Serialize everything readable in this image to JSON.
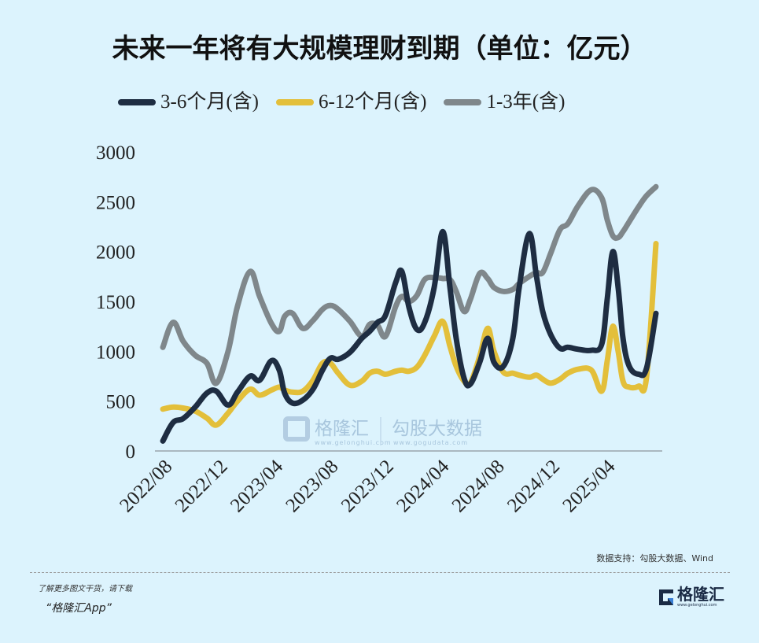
{
  "title": "未来一年将有大规模理财到期（单位：亿元）",
  "watermark": {
    "brand": "格隆汇",
    "brand_url": "www.gelonghui.com",
    "data_brand": "勾股大数据",
    "data_url": "www.gogudata.com"
  },
  "footer": {
    "source": "数据支持：勾股大数据、Wind",
    "promo_line1": "了解更多图文干货，请下载",
    "promo_line2": "“格隆汇App”",
    "logo_text": "格隆汇",
    "logo_url": "www.gelonghui.com"
  },
  "chart_data": {
    "type": "line",
    "title": "未来一年将有大规模理财到期（单位：亿元）",
    "xlabel": "",
    "ylabel": "",
    "ylim": [
      0,
      3000
    ],
    "yticks": [
      0,
      500,
      1000,
      1500,
      2000,
      2500,
      3000
    ],
    "x_unit": "months since 2022/08",
    "xlim": [
      0,
      36
    ],
    "xticks": [
      {
        "value": 0,
        "label": "2022/08"
      },
      {
        "value": 4,
        "label": "2022/12"
      },
      {
        "value": 8,
        "label": "2023/04"
      },
      {
        "value": 12,
        "label": "2023/08"
      },
      {
        "value": 16,
        "label": "2023/12"
      },
      {
        "value": 20,
        "label": "2024/04"
      },
      {
        "value": 24,
        "label": "2024/08"
      },
      {
        "value": 28,
        "label": "2024/12"
      },
      {
        "value": 32,
        "label": "2025/04"
      }
    ],
    "legend_position": "top",
    "grid": false,
    "x": [
      0.06,
      0.8,
      1.53,
      2.39,
      3.24,
      3.92,
      4.77,
      5.45,
      6.36,
      7.05,
      7.9,
      8.47,
      8.86,
      9.43,
      10.17,
      10.91,
      11.59,
      12.16,
      12.73,
      13.58,
      14.43,
      15,
      15.57,
      16.14,
      16.88,
      17.33,
      17.84,
      18.41,
      18.98,
      19.66,
      20.28,
      20.8,
      21.25,
      21.82,
      22.27,
      22.95,
      23.52,
      23.98,
      24.66,
      25.34,
      25.8,
      26.53,
      27.05,
      27.5,
      28.07,
      28.75,
      29.32,
      30.06,
      31.02,
      31.76,
      32.16,
      32.56,
      32.95,
      33.3,
      33.75,
      34.43,
      35,
      35.68
    ],
    "series": [
      {
        "name": "3-6个月(含)",
        "color": "#1e2d42",
        "values": [
          100,
          285,
          325,
          440,
          580,
          600,
          460,
          590,
          750,
          710,
          905,
          810,
          580,
          480,
          510,
          620,
          810,
          930,
          920,
          990,
          1130,
          1200,
          1290,
          1360,
          1690,
          1800,
          1440,
          1220,
          1290,
          1640,
          2200,
          1640,
          1130,
          730,
          670,
          890,
          1130,
          890,
          850,
          1130,
          1640,
          2180,
          1750,
          1400,
          1170,
          1030,
          1040,
          1020,
          1010,
          1070,
          1520,
          2000,
          1640,
          1130,
          850,
          770,
          830,
          1380
        ]
      },
      {
        "name": "6-12个月(含)",
        "color": "#e3bf3a",
        "values": [
          420,
          440,
          430,
          400,
          330,
          260,
          380,
          500,
          620,
          560,
          610,
          640,
          610,
          590,
          600,
          710,
          880,
          880,
          780,
          660,
          700,
          780,
          800,
          770,
          800,
          810,
          800,
          840,
          960,
          1150,
          1300,
          1050,
          850,
          700,
          680,
          950,
          1230,
          1000,
          790,
          780,
          760,
          740,
          760,
          720,
          680,
          720,
          780,
          820,
          810,
          600,
          900,
          1250,
          1000,
          700,
          640,
          650,
          740,
          2080
        ]
      },
      {
        "name": "1-3年(含)",
        "color": "#7f878b",
        "values": [
          1040,
          1290,
          1100,
          960,
          880,
          680,
          1000,
          1450,
          1800,
          1550,
          1280,
          1200,
          1350,
          1380,
          1230,
          1310,
          1420,
          1460,
          1420,
          1300,
          1150,
          1270,
          1260,
          1150,
          1450,
          1550,
          1500,
          1560,
          1720,
          1740,
          1730,
          1720,
          1600,
          1400,
          1520,
          1780,
          1730,
          1640,
          1600,
          1620,
          1680,
          1750,
          1790,
          1790,
          1980,
          2220,
          2280,
          2460,
          2620,
          2540,
          2320,
          2160,
          2140,
          2200,
          2300,
          2450,
          2560,
          2650
        ]
      }
    ]
  }
}
